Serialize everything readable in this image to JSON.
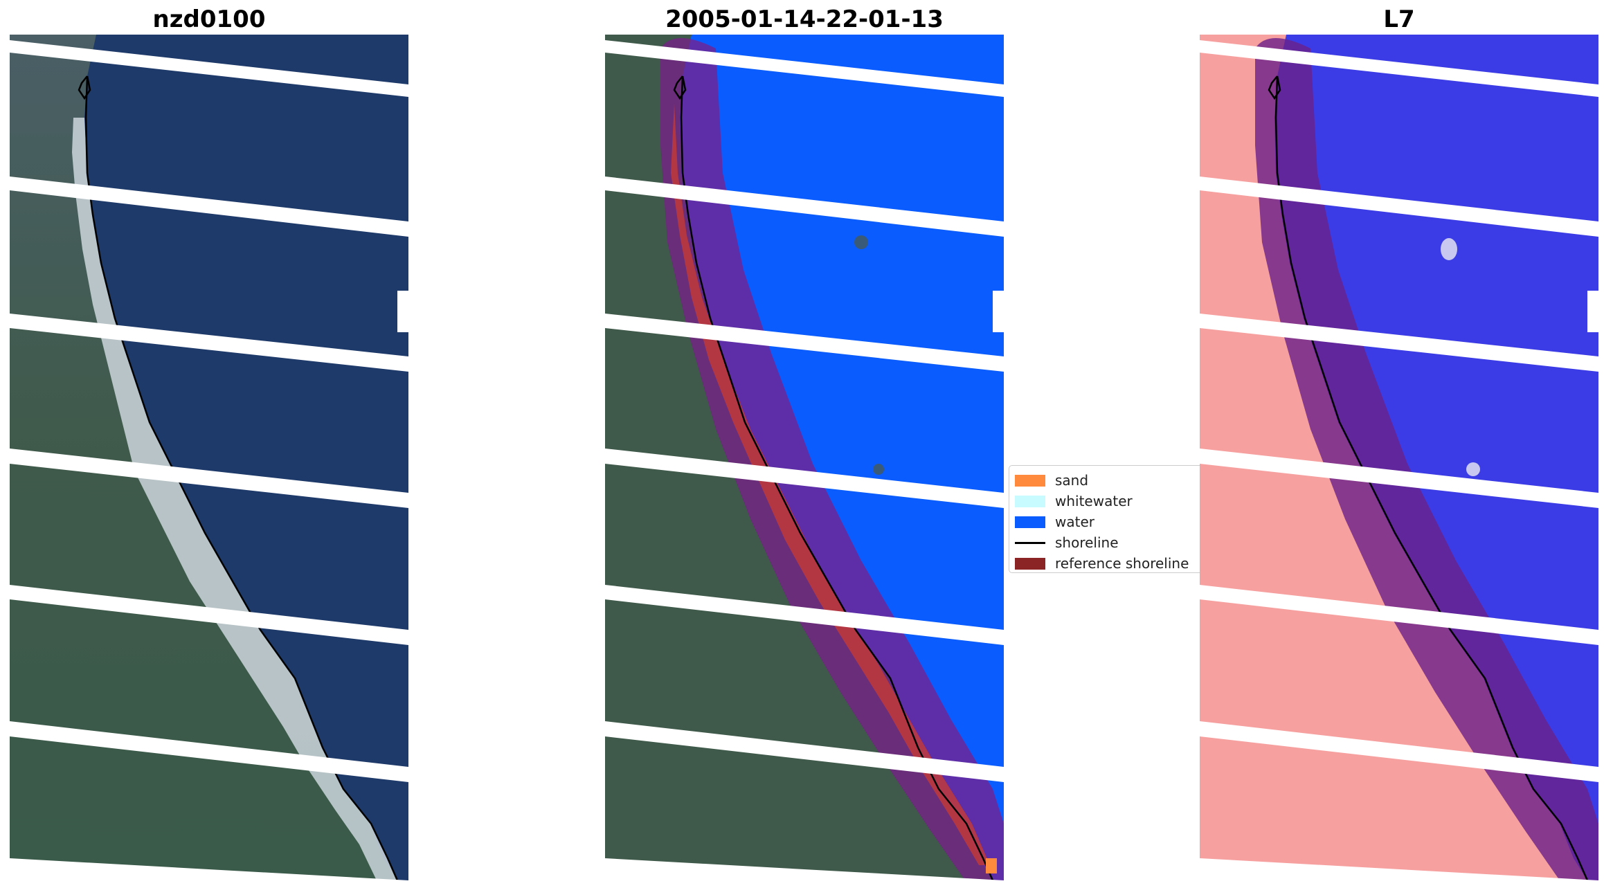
{
  "panels": [
    {
      "title": "nzd0100",
      "kind": "rgb-image"
    },
    {
      "title": "2005-01-14-22-01-13",
      "kind": "classified-image"
    },
    {
      "title": "L7",
      "kind": "mndwi-image"
    }
  ],
  "legend": {
    "items": [
      {
        "label": "sand",
        "color": "#ff8a3d",
        "type": "patch"
      },
      {
        "label": "whitewater",
        "color": "#c8fbff",
        "type": "patch"
      },
      {
        "label": "water",
        "color": "#0a5cff",
        "type": "patch"
      },
      {
        "label": "shoreline",
        "color": "#000000",
        "type": "line"
      },
      {
        "label": "reference shoreline",
        "color": "#8b2525",
        "type": "patch"
      }
    ]
  },
  "colors": {
    "ocean_rgb": "#1d3a6b",
    "land_rgb": "#3e5a4a",
    "beach_rgb": "#d8dde2",
    "water_class": "#0a5cff",
    "land_index": "#f6a0a0",
    "water_index": "#3a3ae8",
    "buffer_overlay": "#7a1f8a"
  }
}
